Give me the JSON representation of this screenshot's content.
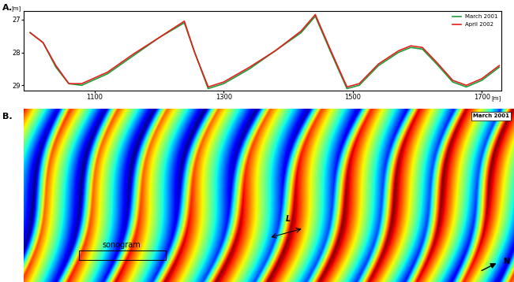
{
  "chart_data": [
    {
      "type": "line",
      "panel_label": "A.",
      "xlabel": "[m]",
      "ylabel": "[m]",
      "x": [
        1000,
        1020,
        1040,
        1060,
        1080,
        1120,
        1160,
        1200,
        1239,
        1255,
        1276,
        1300,
        1340,
        1380,
        1420,
        1442,
        1465,
        1491,
        1510,
        1540,
        1571,
        1590,
        1608,
        1630,
        1655,
        1676,
        1700,
        1727
      ],
      "series": [
        {
          "name": "March 2001",
          "color": "#1a9e3a",
          "values": [
            27.4,
            27.7,
            28.45,
            28.95,
            29.0,
            28.65,
            28.1,
            27.55,
            27.1,
            28.0,
            29.1,
            28.95,
            28.5,
            27.95,
            27.4,
            26.9,
            27.95,
            29.1,
            29.0,
            28.4,
            28.0,
            27.85,
            27.9,
            28.35,
            28.9,
            29.05,
            28.85,
            28.45
          ]
        },
        {
          "name": "April 2002",
          "color": "#e0201b",
          "values": [
            27.4,
            27.7,
            28.4,
            28.95,
            28.95,
            28.6,
            28.05,
            27.55,
            27.05,
            28.0,
            29.05,
            28.9,
            28.45,
            27.95,
            27.35,
            26.85,
            27.9,
            29.05,
            28.95,
            28.35,
            27.95,
            27.8,
            27.85,
            28.3,
            28.85,
            29.0,
            28.8,
            28.4
          ]
        }
      ],
      "xlim": [
        990,
        1730
      ],
      "xticks": [
        1100,
        1300,
        1500,
        1700
      ],
      "ylim": [
        29.15,
        26.75
      ],
      "yticks": [
        27,
        28,
        29
      ],
      "grid": false,
      "legend": "upper right"
    },
    {
      "type": "map",
      "panel_label": "B.",
      "date_label": "March 2001",
      "annotations": [
        "sonogram",
        "L"
      ],
      "north_label": "N"
    }
  ]
}
